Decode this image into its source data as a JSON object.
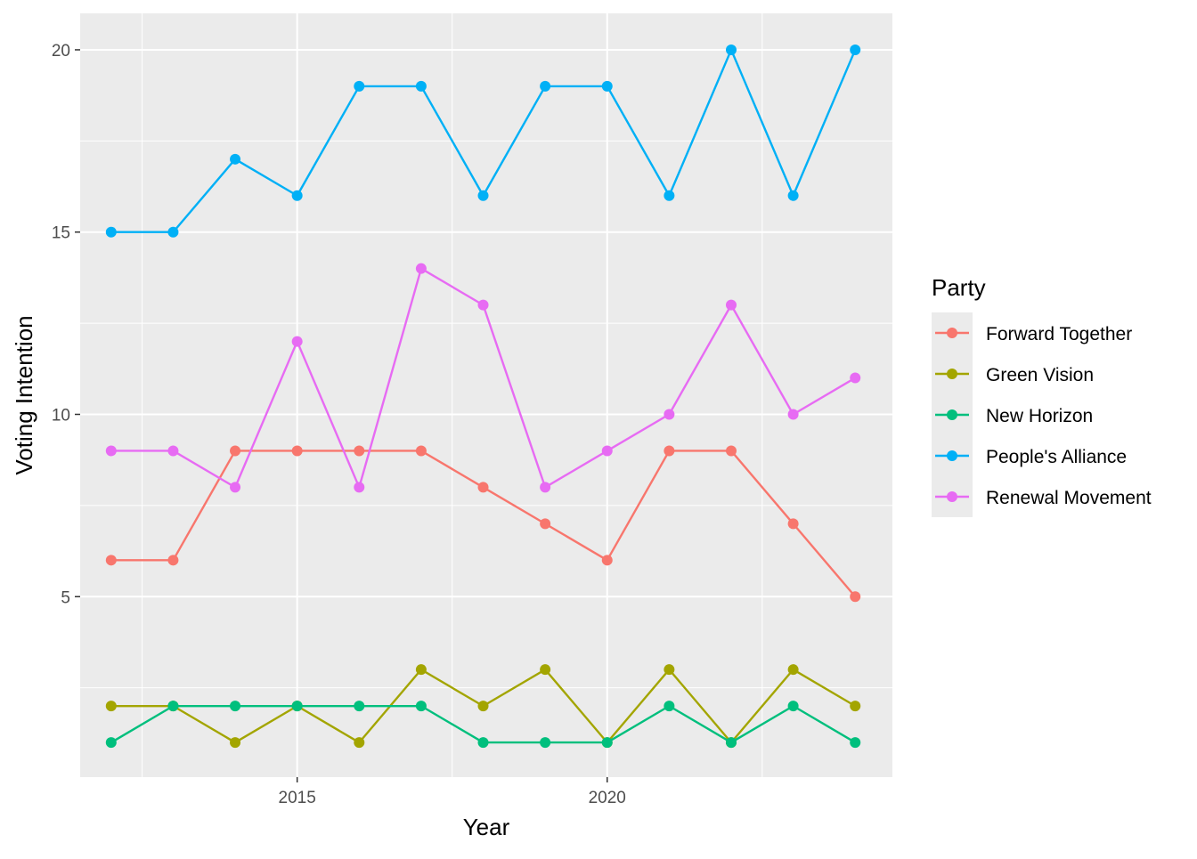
{
  "chart_data": {
    "type": "line",
    "xlabel": "Year",
    "ylabel": "Voting Intention",
    "x": [
      2012,
      2013,
      2014,
      2015,
      2016,
      2017,
      2018,
      2019,
      2020,
      2021,
      2022,
      2023,
      2024
    ],
    "xlim": [
      2011.5,
      2024.6
    ],
    "ylim": [
      0.05,
      21
    ],
    "x_ticks": [
      2015,
      2020
    ],
    "y_ticks": [
      5,
      10,
      15,
      20
    ],
    "grid": true,
    "legend": {
      "title": "Party",
      "position": "right"
    },
    "series": [
      {
        "name": "Forward Together",
        "color": "#F8766D",
        "values": [
          6,
          6,
          9,
          9,
          9,
          9,
          8,
          7,
          6,
          9,
          9,
          7,
          5
        ]
      },
      {
        "name": "Green Vision",
        "color": "#A3A500",
        "values": [
          2,
          2,
          1,
          2,
          1,
          3,
          2,
          3,
          1,
          3,
          1,
          3,
          2
        ]
      },
      {
        "name": "New Horizon",
        "color": "#00BF7D",
        "values": [
          1,
          2,
          2,
          2,
          2,
          2,
          1,
          1,
          1,
          2,
          1,
          2,
          1
        ]
      },
      {
        "name": "People's Alliance",
        "color": "#00B0F6",
        "values": [
          15,
          15,
          17,
          16,
          19,
          19,
          16,
          19,
          19,
          16,
          20,
          16,
          20
        ]
      },
      {
        "name": "Renewal Movement",
        "color": "#E76BF3",
        "values": [
          9,
          9,
          8,
          12,
          8,
          14,
          13,
          8,
          9,
          10,
          13,
          10,
          11
        ]
      }
    ]
  }
}
